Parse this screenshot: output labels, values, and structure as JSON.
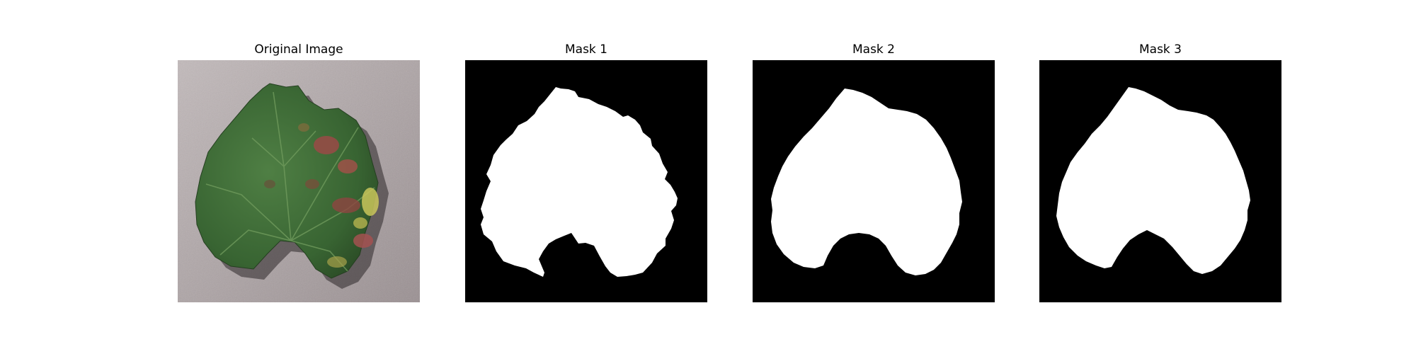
{
  "figure": {
    "panels": [
      {
        "title": "Original Image"
      },
      {
        "title": "Mask 1"
      },
      {
        "title": "Mask 2"
      },
      {
        "title": "Mask 3"
      }
    ],
    "colors": {
      "background": "#ffffff",
      "mask_background": "#000000",
      "mask_foreground": "#ffffff",
      "photo_ground": "#a79e9f",
      "leaf_green": "#3d6b35",
      "leaf_dark_green": "#2a4a25",
      "lesion_red": "#9a4a47",
      "lesion_yellow": "#c9c55a"
    }
  }
}
